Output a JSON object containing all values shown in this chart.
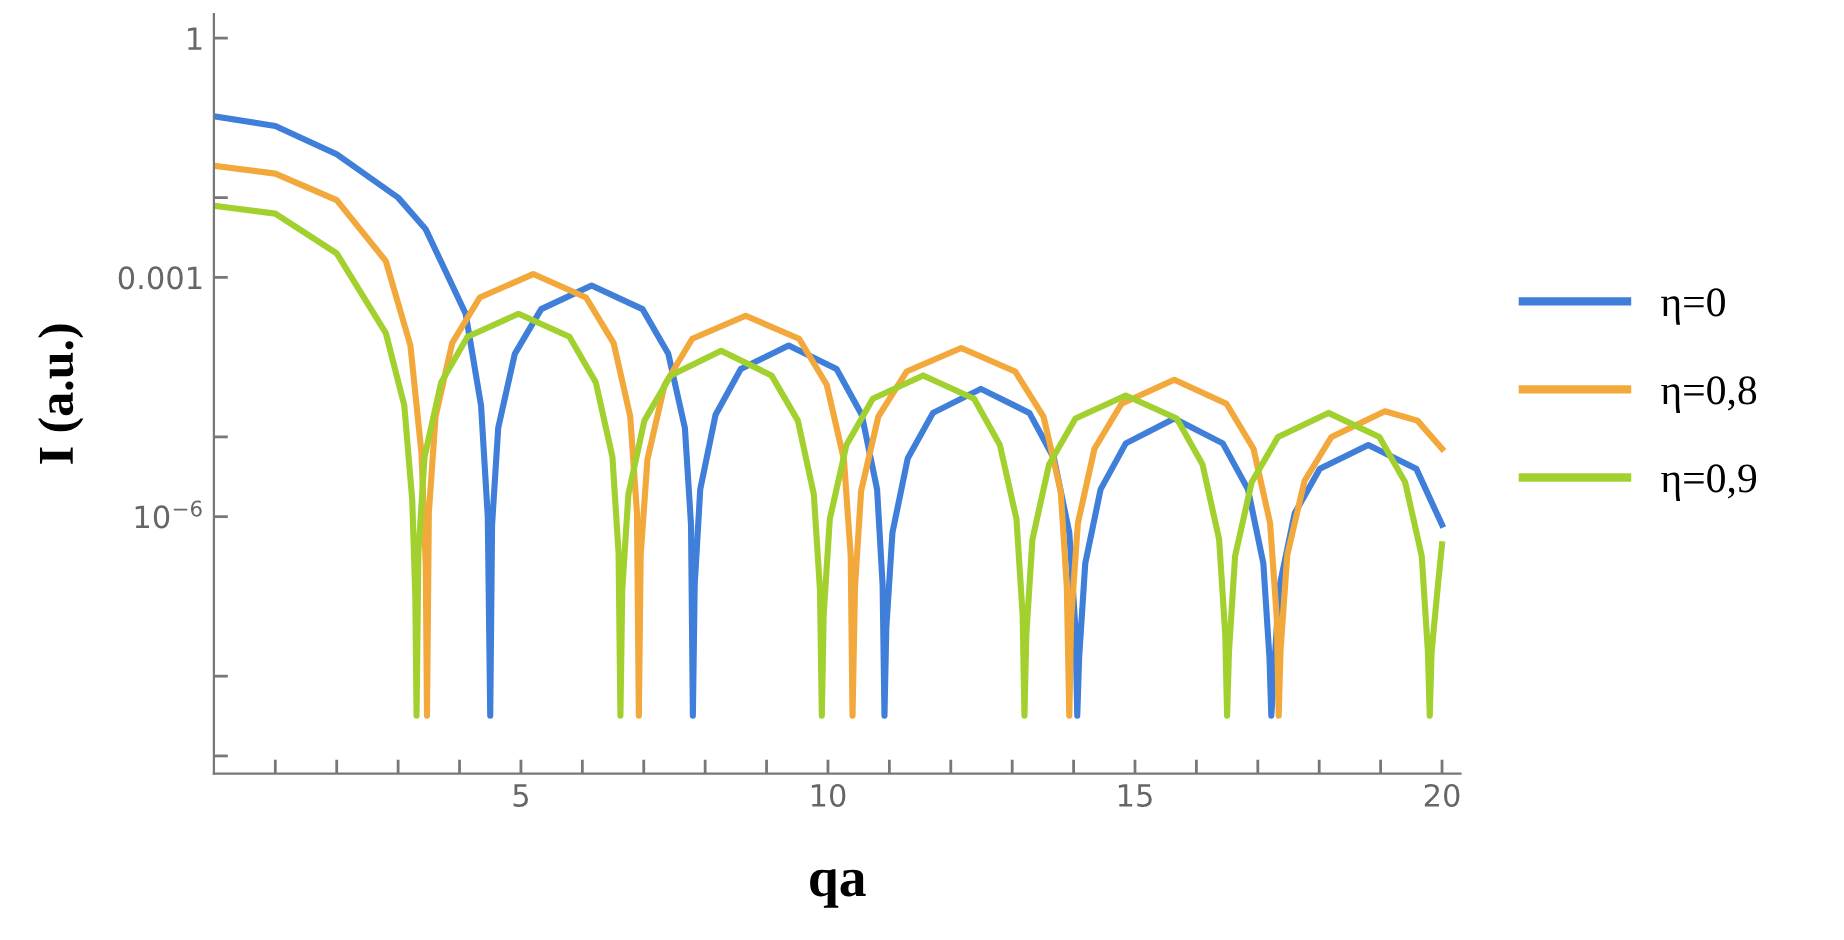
{
  "chart_data": {
    "type": "line",
    "xlabel": "qa",
    "ylabel": "I (a.u.)",
    "log": "y",
    "legend": "right",
    "grid": false,
    "marker": "none",
    "line_style": "solid",
    "xlim": [
      0,
      20.3
    ],
    "ylim": [
      6e-10,
      2
    ],
    "xticks": [
      {
        "value": 1,
        "label": null
      },
      {
        "value": 2,
        "label": null
      },
      {
        "value": 3,
        "label": null
      },
      {
        "value": 4,
        "label": null
      },
      5,
      {
        "value": 6,
        "label": null
      },
      {
        "value": 7,
        "label": null
      },
      {
        "value": 8,
        "label": null
      },
      {
        "value": 9,
        "label": null
      },
      10,
      {
        "value": 11,
        "label": null
      },
      {
        "value": 12,
        "label": null
      },
      {
        "value": 13,
        "label": null
      },
      {
        "value": 14,
        "label": null
      },
      15,
      {
        "value": 16,
        "label": null
      },
      {
        "value": 17,
        "label": null
      },
      {
        "value": 18,
        "label": null
      },
      {
        "value": 19,
        "label": null
      },
      20
    ],
    "yticks": [
      1,
      {
        "value": 0.01,
        "label": null
      },
      0.001,
      {
        "value": 1e-05,
        "label": null
      },
      {
        "value": 1e-06,
        "label": "10$^{−6}$"
      },
      {
        "value": 1e-08,
        "label": null
      },
      {
        "value": 1e-09,
        "label": null
      }
    ],
    "series": [
      {
        "name": "η=0",
        "color": "#3f7fd9",
        "x": [
          0,
          1,
          2,
          3,
          3.45,
          4.1,
          4.35,
          4.46,
          4.5,
          4.53,
          4.63,
          4.9,
          5.33,
          6.15,
          6.98,
          7.4,
          7.67,
          7.77,
          7.8,
          7.83,
          7.92,
          8.17,
          8.58,
          9.36,
          10.14,
          10.55,
          10.8,
          10.89,
          10.92,
          10.95,
          11.05,
          11.3,
          11.71,
          12.49,
          13.28,
          13.68,
          13.93,
          14.03,
          14.06,
          14.09,
          14.19,
          14.44,
          14.85,
          15.64,
          16.43,
          16.84,
          17.09,
          17.19,
          17.22,
          17.25,
          17.35,
          17.6,
          18.01,
          18.8,
          19.58,
          20
        ],
        "values": [
          0.105,
          0.079,
          0.035,
          0.01,
          0.004,
          0.00035,
          2.5e-05,
          1e-06,
          3.2e-09,
          7.9e-07,
          1.3e-05,
          0.00011,
          0.0004,
          0.00079,
          0.0004,
          0.00011,
          1.3e-05,
          7.9e-07,
          3.2e-09,
          1.4e-07,
          2.2e-06,
          1.9e-05,
          7.1e-05,
          0.00014,
          7.1e-05,
          1.9e-05,
          2.2e-06,
          1.4e-07,
          3.2e-09,
          4e-08,
          6.3e-07,
          5.4e-06,
          2e-05,
          4e-05,
          2e-05,
          5.4e-06,
          6.3e-07,
          4e-08,
          3.2e-09,
          1.7e-08,
          2.6e-07,
          2.2e-06,
          8.3e-06,
          1.7e-05,
          8.3e-06,
          2.2e-06,
          2.6e-07,
          1.7e-08,
          3.2e-09,
          7.9e-09,
          1.3e-07,
          1.1e-06,
          4e-06,
          7.9e-06,
          4e-06,
          7.9e-07
        ]
      },
      {
        "name": "η=0,8",
        "color": "#f2a83b",
        "x": [
          0,
          1,
          2,
          2.8,
          3.2,
          3.38,
          3.45,
          3.47,
          3.5,
          3.61,
          3.88,
          4.33,
          5.2,
          6.06,
          6.51,
          6.78,
          6.89,
          6.92,
          6.95,
          7.06,
          7.34,
          7.79,
          8.66,
          9.53,
          9.98,
          10.26,
          10.37,
          10.4,
          10.44,
          10.54,
          10.82,
          11.28,
          12.17,
          13.05,
          13.51,
          13.79,
          13.89,
          13.93,
          13.96,
          14.07,
          14.34,
          14.78,
          15.64,
          16.49,
          16.93,
          17.2,
          17.31,
          17.34,
          17.37,
          17.48,
          17.76,
          18.2,
          19.07,
          19.6,
          20
        ],
        "values": [
          0.025,
          0.02,
          0.0093,
          0.0016,
          0.00014,
          6.3e-06,
          2.5e-07,
          3.2e-09,
          1.1e-06,
          1.8e-05,
          0.00015,
          0.00056,
          0.0011,
          0.00056,
          0.00015,
          1.8e-05,
          1.1e-06,
          3.2e-09,
          3.3e-07,
          5.2e-06,
          4.5e-05,
          0.00017,
          0.00033,
          0.00017,
          4.5e-05,
          5.2e-06,
          3.3e-07,
          3.2e-09,
          1.3e-07,
          2.1e-06,
          1.8e-05,
          6.6e-05,
          0.00013,
          6.6e-05,
          1.8e-05,
          2.1e-06,
          1.3e-07,
          3.2e-09,
          5.2e-08,
          8.3e-07,
          7.1e-06,
          2.6e-05,
          5.2e-05,
          2.6e-05,
          7.1e-06,
          8.3e-07,
          5.2e-08,
          3.2e-09,
          2.1e-08,
          3.3e-07,
          2.8e-06,
          1e-05,
          2.1e-05,
          1.6e-05,
          7.1e-06
        ]
      },
      {
        "name": "η=0,9",
        "color": "#a2d12f",
        "x": [
          0,
          1,
          2,
          2.8,
          3.1,
          3.23,
          3.28,
          3.3,
          3.33,
          3.43,
          3.7,
          4.13,
          4.96,
          5.79,
          6.22,
          6.49,
          6.59,
          6.62,
          6.65,
          6.75,
          7.01,
          7.44,
          8.26,
          9.08,
          9.51,
          9.77,
          9.87,
          9.9,
          9.93,
          10.03,
          10.3,
          10.73,
          11.55,
          12.38,
          12.8,
          13.07,
          13.17,
          13.2,
          13.23,
          13.33,
          13.6,
          14.03,
          14.85,
          15.68,
          16.1,
          16.37,
          16.47,
          16.5,
          16.53,
          16.63,
          16.9,
          17.33,
          18.15,
          18.98,
          19.4,
          19.67,
          19.77,
          19.8,
          19.83,
          19.93,
          20
        ],
        "values": [
          0.0079,
          0.0063,
          0.002,
          0.0002,
          2.5e-05,
          1.6e-06,
          1e-07,
          3.2e-09,
          3.5e-07,
          5.6e-06,
          4.8e-05,
          0.00018,
          0.00035,
          0.00018,
          4.8e-05,
          5.6e-06,
          3.5e-07,
          3.2e-09,
          1.2e-07,
          1.9e-06,
          1.6e-05,
          5.9e-05,
          0.00012,
          5.9e-05,
          1.6e-05,
          1.9e-06,
          1.2e-07,
          3.2e-09,
          5.9e-08,
          9.3e-07,
          7.9e-06,
          3e-05,
          5.9e-05,
          3e-05,
          7.9e-06,
          9.3e-07,
          5.9e-08,
          3.2e-09,
          3.3e-08,
          5.2e-07,
          4.5e-06,
          1.7e-05,
          3.3e-05,
          1.7e-05,
          4.5e-06,
          5.2e-07,
          3.3e-08,
          3.2e-09,
          2e-08,
          3.2e-07,
          2.7e-06,
          1e-05,
          2e-05,
          1e-05,
          2.7e-06,
          3.2e-07,
          2e-08,
          3.2e-09,
          2e-08,
          1.3e-07,
          4.5e-07
        ]
      }
    ]
  }
}
